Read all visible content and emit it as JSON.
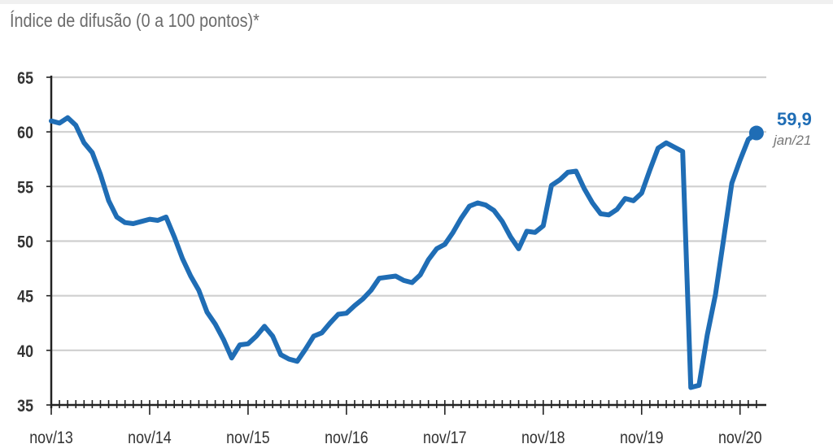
{
  "chart_data": {
    "type": "line",
    "title": "Índice de difusão (0 a 100 pontos)*",
    "xlabel": "",
    "ylabel": "",
    "ylim": [
      35,
      65
    ],
    "y_ticks": [
      35,
      40,
      45,
      50,
      55,
      60,
      65
    ],
    "x_tick_labels": [
      "nov/13",
      "nov/14",
      "nov/15",
      "nov/16",
      "nov/17",
      "nov/18",
      "nov/19",
      "nov/20"
    ],
    "grid": "horizontal",
    "series_color": "#1f6db5",
    "x": [
      "2013-11",
      "2013-12",
      "2014-01",
      "2014-02",
      "2014-03",
      "2014-04",
      "2014-05",
      "2014-06",
      "2014-07",
      "2014-08",
      "2014-09",
      "2014-10",
      "2014-11",
      "2014-12",
      "2015-01",
      "2015-02",
      "2015-03",
      "2015-04",
      "2015-05",
      "2015-06",
      "2015-07",
      "2015-08",
      "2015-09",
      "2015-10",
      "2015-11",
      "2015-12",
      "2016-01",
      "2016-02",
      "2016-03",
      "2016-04",
      "2016-05",
      "2016-06",
      "2016-07",
      "2016-08",
      "2016-09",
      "2016-10",
      "2016-11",
      "2016-12",
      "2017-01",
      "2017-02",
      "2017-03",
      "2017-04",
      "2017-05",
      "2017-06",
      "2017-07",
      "2017-08",
      "2017-09",
      "2017-10",
      "2017-11",
      "2017-12",
      "2018-01",
      "2018-02",
      "2018-03",
      "2018-04",
      "2018-05",
      "2018-06",
      "2018-07",
      "2018-08",
      "2018-09",
      "2018-10",
      "2018-11",
      "2018-12",
      "2019-01",
      "2019-02",
      "2019-03",
      "2019-04",
      "2019-05",
      "2019-06",
      "2019-07",
      "2019-08",
      "2019-09",
      "2019-10",
      "2019-11",
      "2019-12",
      "2020-01",
      "2020-02",
      "2020-03",
      "2020-04",
      "2020-05",
      "2020-06",
      "2020-07",
      "2020-08",
      "2020-09",
      "2020-10",
      "2020-11",
      "2020-12",
      "2021-01"
    ],
    "values": [
      61.0,
      60.8,
      61.3,
      60.6,
      59.0,
      58.1,
      56.1,
      53.7,
      52.2,
      51.7,
      51.6,
      51.8,
      52.0,
      51.9,
      52.2,
      50.4,
      48.4,
      46.8,
      45.5,
      43.5,
      42.4,
      41.0,
      39.3,
      40.5,
      40.6,
      41.3,
      42.2,
      41.3,
      39.6,
      39.2,
      39.0,
      40.1,
      41.3,
      41.6,
      42.5,
      43.3,
      43.4,
      44.1,
      44.7,
      45.5,
      46.6,
      46.7,
      46.8,
      46.4,
      46.2,
      46.9,
      48.3,
      49.3,
      49.7,
      50.8,
      52.1,
      53.2,
      53.5,
      53.3,
      52.8,
      51.8,
      50.4,
      49.3,
      50.9,
      50.8,
      51.4,
      55.1,
      55.6,
      56.3,
      56.4,
      54.8,
      53.5,
      52.5,
      52.4,
      52.9,
      53.9,
      53.7,
      54.4,
      56.5,
      58.5,
      59.0,
      58.6,
      58.2,
      36.6,
      36.8,
      41.4,
      45.1,
      50.2,
      55.3,
      57.4,
      59.3,
      59.9
    ],
    "annotation": {
      "value": "59,9",
      "date": "jan/21"
    }
  }
}
